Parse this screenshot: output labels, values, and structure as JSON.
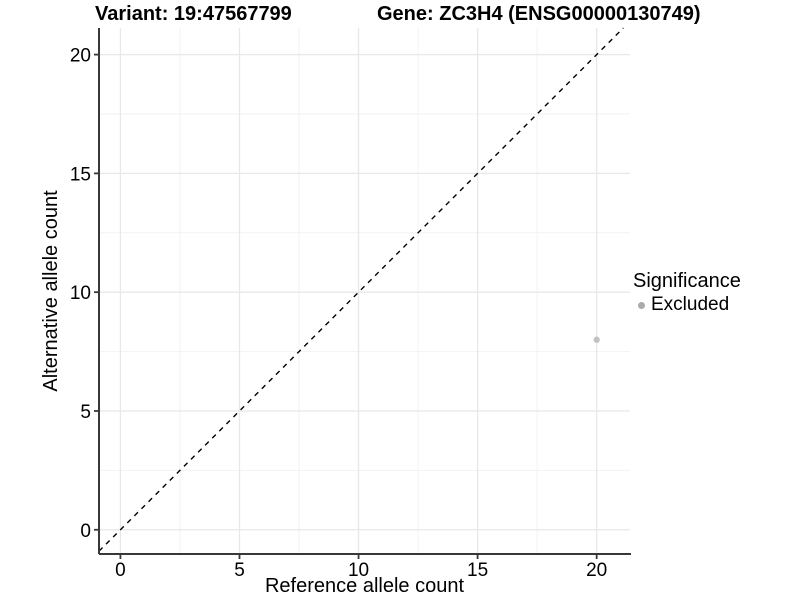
{
  "chart_data": {
    "type": "scatter",
    "title_left": "Variant: 19:47567799",
    "title_right": "Gene: ZC3H4 (ENSG00000130749)",
    "xlabel": "Reference allele count",
    "ylabel": "Alternative allele count",
    "xlim": [
      -0.9,
      21.4
    ],
    "ylim": [
      -1.02,
      21.12
    ],
    "xticks": [
      0,
      5,
      10,
      15,
      20
    ],
    "yticks": [
      0,
      5,
      10,
      15,
      20
    ],
    "xminor": [
      2.5,
      7.5,
      12.5,
      17.5
    ],
    "yminor": [
      2.5,
      7.5,
      12.5,
      17.5
    ],
    "grid": true,
    "identity_line": {
      "style": "dashed",
      "equation": "y = x",
      "color": "#000000"
    },
    "series": [
      {
        "name": "Excluded",
        "color": "#c2c2c2",
        "points": [
          {
            "x": 20,
            "y": 8
          }
        ]
      }
    ],
    "legend": {
      "title": "Significance",
      "position": "right",
      "items": [
        {
          "label": "Excluded",
          "color": "#ababab",
          "marker": "circle"
        }
      ]
    },
    "colors": {
      "axis_line": "#383838",
      "grid_major": "#e8e8e8",
      "grid_minor": "#f2f2f2",
      "tick_label": "#000000",
      "background": "#ffffff"
    }
  }
}
